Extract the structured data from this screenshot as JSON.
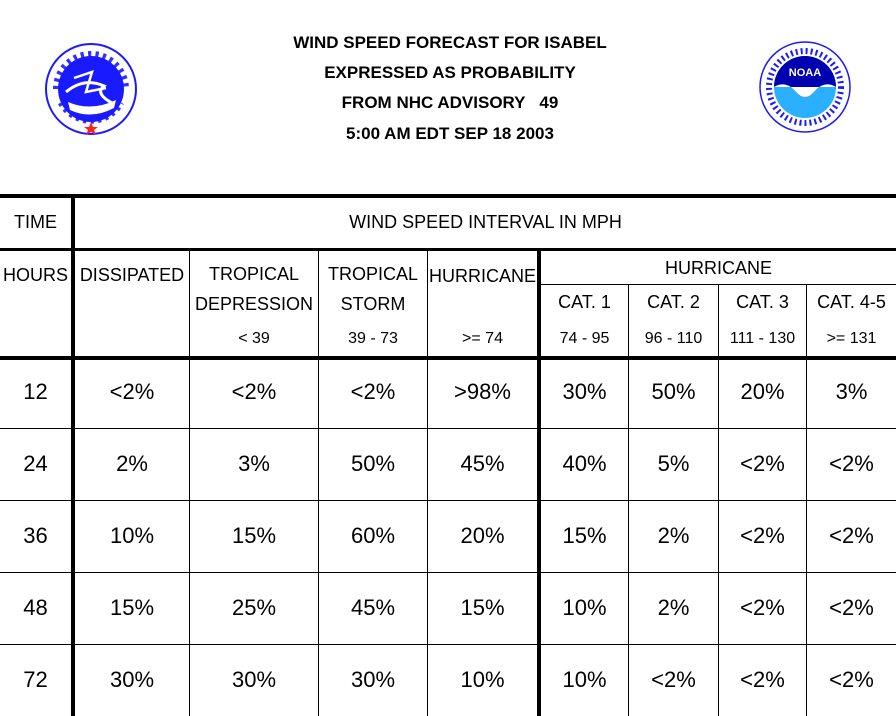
{
  "header": {
    "line1": "WIND SPEED FORECAST FOR ISABEL",
    "line2": "EXPRESSED AS PROBABILITY",
    "line3": "FROM NHC ADVISORY   49",
    "line4": "5:00 AM EDT SEP 18 2003"
  },
  "logos": {
    "nws_icon": "national-weather-service-logo",
    "noaa_icon": "noaa-logo",
    "noaa_text": "NOAA",
    "nws_colors": {
      "ring": "#ffffff",
      "inner": "#1a1aff",
      "star": "#ff2020"
    },
    "noaa_colors": {
      "ring": "#ffffff",
      "upper": "#0000b0",
      "lower": "#2ab0ff"
    }
  },
  "table": {
    "time_label": "TIME",
    "wind_interval_label": "WIND SPEED INTERVAL IN MPH",
    "hours_label": "HOURS",
    "columns": {
      "dissipated": "DISSIPATED",
      "td_line1": "TROPICAL",
      "td_line2": "DEPRESSION",
      "td_range": "< 39",
      "ts_line1": "TROPICAL",
      "ts_line2": "STORM",
      "ts_range": "39 - 73",
      "hurricane": "HURRICANE",
      "hurricane_range": ">= 74",
      "hurricane_group": "HURRICANE",
      "cat1": "CAT. 1",
      "cat1_range": "74 - 95",
      "cat2": "CAT. 2",
      "cat2_range": "96 - 110",
      "cat3": "CAT. 3",
      "cat3_range": "111 - 130",
      "cat45": "CAT. 4-5",
      "cat45_range": ">= 131"
    },
    "rows": [
      {
        "hours": "12",
        "values": [
          "<2%",
          "<2%",
          "<2%",
          ">98%",
          "30%",
          "50%",
          "20%",
          "3%"
        ]
      },
      {
        "hours": "24",
        "values": [
          "2%",
          "3%",
          "50%",
          "45%",
          "40%",
          "5%",
          "<2%",
          "<2%"
        ]
      },
      {
        "hours": "36",
        "values": [
          "10%",
          "15%",
          "60%",
          "20%",
          "15%",
          "2%",
          "<2%",
          "<2%"
        ]
      },
      {
        "hours": "48",
        "values": [
          "15%",
          "25%",
          "45%",
          "15%",
          "10%",
          "2%",
          "<2%",
          "<2%"
        ]
      },
      {
        "hours": "72",
        "values": [
          "30%",
          "30%",
          "30%",
          "10%",
          "10%",
          "<2%",
          "<2%",
          "<2%"
        ]
      }
    ]
  }
}
